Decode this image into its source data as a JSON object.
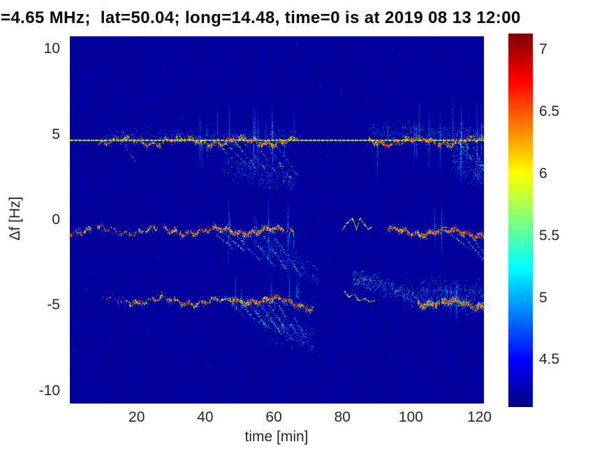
{
  "chart_data": {
    "type": "heatmap",
    "subtype": "doppler-spectrogram",
    "title": "=4.65 MHz;  lat=50.04; long=14.48, time=0 is at 2019 08 13 12:00",
    "xlabel": "time [min]",
    "ylabel": "Δf [Hz]",
    "xlim": [
      0.5,
      121.3
    ],
    "ylim": [
      -10.75,
      10.75
    ],
    "xticks": [
      20,
      40,
      60,
      80,
      100,
      120
    ],
    "yticks": [
      10,
      5,
      0,
      -5,
      -10
    ],
    "grid": false,
    "colorbar": {
      "position": "right",
      "colormap": "jet",
      "vmin": 4.12,
      "vmax": 7.13,
      "ticks": [
        7,
        6.5,
        6,
        5.5,
        5,
        4.5
      ]
    },
    "background_value": 4.2,
    "carrier_line": {
      "f": 4.62,
      "t0": 0.5,
      "t1": 121.3,
      "style": "dashed",
      "values": [
        5.55,
        6.05
      ]
    },
    "bands": [
      {
        "name": "upper-trace",
        "f": 4.6,
        "segments": [
          {
            "t0": 9,
            "t1": 26,
            "amp": 0.55,
            "w": 2.4
          },
          {
            "t0": 26,
            "t1": 47,
            "amp": 0.75,
            "w": 3.0
          },
          {
            "t0": 47,
            "t1": 61,
            "amp": 0.95,
            "w": 3.4
          },
          {
            "t0": 61,
            "t1": 67,
            "amp": 0.7,
            "w": 2.8
          },
          {
            "t0": 87.5,
            "t1": 121.3,
            "amp": 0.85,
            "w": 3.0
          }
        ],
        "spike_regions": [
          [
            34,
            67,
            14,
            2.2
          ],
          [
            90,
            121,
            16,
            2.6
          ]
        ]
      },
      {
        "name": "middle-trace",
        "f": -0.65,
        "segments": [
          {
            "t0": 0.5,
            "t1": 7,
            "amp": 0.7,
            "w": 2.8
          },
          {
            "t0": 8.5,
            "t1": 26,
            "amp": 0.55,
            "w": 2.4
          },
          {
            "t0": 28,
            "t1": 42,
            "amp": 0.7,
            "w": 2.8
          },
          {
            "t0": 42,
            "t1": 60,
            "amp": 0.9,
            "w": 3.4
          },
          {
            "t0": 60,
            "t1": 66,
            "amp": 0.7,
            "w": 2.8
          },
          {
            "t0": 93,
            "t1": 121.3,
            "amp": 0.9,
            "w": 3.4,
            "f1": -0.8
          }
        ],
        "spike_regions": [
          [
            44,
            66,
            10,
            2.0
          ],
          [
            100,
            113,
            3,
            1.6
          ]
        ]
      },
      {
        "name": "lower-trace",
        "f": -4.7,
        "segments": [
          {
            "t0": 10,
            "t1": 18,
            "amp": 0.35,
            "w": 2.0
          },
          {
            "t0": 18,
            "t1": 47,
            "amp": 0.65,
            "w": 2.8,
            "f1": -4.8
          },
          {
            "t0": 47,
            "t1": 61,
            "amp": 0.95,
            "w": 3.6
          },
          {
            "t0": 61,
            "t1": 72,
            "amp": 0.8,
            "w": 3.0,
            "f1": -5.1
          },
          {
            "t0": 102,
            "t1": 121.3,
            "amp": 1.0,
            "w": 4.4,
            "f": -4.8,
            "f1": -5.0
          }
        ],
        "spike_regions": [
          [
            48,
            70,
            9,
            1.8
          ],
          [
            107,
            116,
            3,
            1.5
          ]
        ]
      }
    ],
    "streaks": [
      [
        16.5,
        4.4,
        20,
        3.2,
        0.5
      ],
      [
        43,
        4.5,
        48,
        3.6,
        0.55
      ],
      [
        46,
        4.5,
        52,
        3.2,
        0.6
      ],
      [
        49,
        4.5,
        55,
        3.0,
        0.65
      ],
      [
        52,
        4.4,
        58,
        2.8,
        0.6
      ],
      [
        55,
        4.4,
        61,
        2.6,
        0.55
      ],
      [
        58,
        4.3,
        65,
        2.4,
        0.45
      ],
      [
        61,
        4.3,
        67,
        2.6,
        0.35
      ],
      [
        112,
        4.5,
        117,
        3.6,
        0.5
      ],
      [
        114,
        4.5,
        119,
        3.2,
        0.55
      ],
      [
        116,
        4.4,
        121,
        2.9,
        0.5
      ],
      [
        118,
        4.4,
        121.3,
        3.0,
        0.45
      ],
      [
        43,
        -0.8,
        48,
        -1.7,
        0.5
      ],
      [
        46,
        -0.8,
        52,
        -2.0,
        0.55
      ],
      [
        49,
        -0.9,
        56,
        -2.4,
        0.6
      ],
      [
        53,
        -0.9,
        60,
        -2.7,
        0.55
      ],
      [
        57,
        -1.0,
        64,
        -3.0,
        0.5
      ],
      [
        60,
        -1.0,
        68,
        -3.3,
        0.4
      ],
      [
        112,
        -0.9,
        117,
        -1.7,
        0.45
      ],
      [
        115,
        -0.9,
        121,
        -2.3,
        0.5
      ],
      [
        118,
        -1.0,
        121.3,
        -2.0,
        0.4
      ],
      [
        46,
        -4.5,
        51,
        -5.6,
        0.6
      ],
      [
        49,
        -4.6,
        55,
        -6.0,
        0.65
      ],
      [
        52,
        -4.6,
        58,
        -6.3,
        0.6
      ],
      [
        55,
        -4.7,
        62,
        -6.6,
        0.55
      ],
      [
        58,
        -4.8,
        65,
        -6.9,
        0.5
      ],
      [
        61,
        -4.9,
        68,
        -7.1,
        0.4
      ],
      [
        64,
        -5.0,
        70,
        -7.2,
        0.3
      ]
    ],
    "haze_regions": [
      [
        83,
        -3.35,
        102,
        -4.55,
        0.55,
        0.5,
        4.8,
        5.7
      ],
      [
        102,
        -4.3,
        121.3,
        -4.5,
        0.85,
        0.35,
        4.7,
        5.6
      ],
      [
        55,
        -5.6,
        72,
        -7.2,
        0.8,
        0.28,
        4.7,
        5.4
      ],
      [
        56,
        -1.6,
        73,
        -3.2,
        0.7,
        0.22,
        4.7,
        5.3
      ],
      [
        112,
        3.4,
        121.3,
        2.6,
        0.7,
        0.3,
        4.7,
        5.5
      ],
      [
        45,
        3.2,
        66,
        2.3,
        0.8,
        0.22,
        4.7,
        5.4
      ],
      [
        88,
        5.2,
        121.3,
        5.0,
        0.5,
        0.25,
        4.7,
        5.3
      ],
      [
        10,
        4.95,
        67,
        4.95,
        0.4,
        0.18,
        4.7,
        5.3
      ]
    ],
    "squiggles": [
      {
        "points": [
          [
            80,
            -0.55
          ],
          [
            81.5,
            -0.15
          ],
          [
            83,
            0.1
          ],
          [
            84.2,
            -0.55
          ],
          [
            85.2,
            0.15
          ],
          [
            86.2,
            -0.2
          ],
          [
            87.6,
            -0.55
          ],
          [
            88.8,
            -0.4
          ]
        ],
        "v0": 5.7,
        "v1": 6.3
      },
      {
        "points": [
          [
            80.5,
            -4.15
          ],
          [
            82,
            -4.5
          ],
          [
            83.5,
            -4.35
          ],
          [
            85,
            -4.75
          ],
          [
            86.5,
            -4.6
          ],
          [
            88,
            -4.8
          ],
          [
            89.5,
            -4.7
          ]
        ],
        "v0": 5.6,
        "v1": 6.2
      }
    ],
    "colors": {
      "plot_background": "#000090",
      "figure_background": "#ffffff",
      "tick_label": "#262626",
      "title": "#000000"
    }
  }
}
